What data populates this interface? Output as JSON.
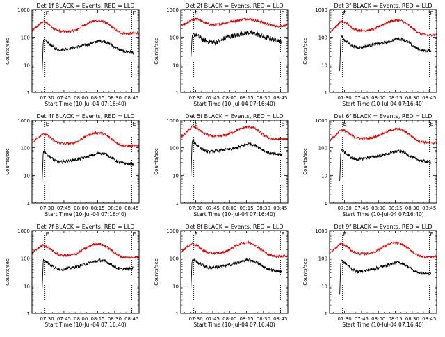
{
  "panel_title_suffix": "BLACK = Events, RED = LLD",
  "x_axis_title": "Start Time (10-Jul-04 07:16:40)",
  "y_axis_title": "Counts/sec",
  "x_tick_labels": [
    "07:30",
    "07:45",
    "08:00",
    "08:15",
    "08:30",
    "08:45"
  ],
  "y_tick_labels": [
    "1",
    "10",
    "100",
    "1000"
  ],
  "colors": {
    "events": "#000000",
    "lld": "#e00000",
    "axes": "#000000"
  },
  "chart_data": [
    {
      "type": "line",
      "detector": "1f",
      "title": "Det 1f BLACK = Events, RED = LLD",
      "xlabel": "Start Time (10-Jul-04 07:16:40)",
      "ylabel": "Counts/sec",
      "x_scale": "time (minutes after 07:16:40)",
      "xlim": [
        0,
        95
      ],
      "y_scale": "log",
      "ylim": [
        1,
        1000
      ],
      "markers": [
        {
          "label": "E",
          "x": 11.5
        },
        {
          "label": "E",
          "x": 88.5
        }
      ],
      "series": [
        {
          "color": "#e00000",
          "x": [
            0,
            5,
            10,
            15,
            20,
            25,
            30,
            35,
            40,
            45,
            50,
            55,
            60,
            65,
            70,
            75,
            80,
            85,
            90,
            95
          ],
          "y": [
            170,
            260,
            380,
            300,
            200,
            165,
            160,
            165,
            190,
            260,
            330,
            390,
            400,
            350,
            250,
            175,
            140,
            135,
            140,
            145
          ]
        },
        {
          "color": "#000000",
          "x": [
            9,
            10,
            11,
            13,
            15,
            20,
            25,
            30,
            35,
            40,
            45,
            50,
            55,
            60,
            65,
            70,
            75,
            80,
            85,
            90
          ],
          "y": [
            5,
            70,
            75,
            70,
            60,
            40,
            35,
            38,
            40,
            45,
            50,
            55,
            65,
            75,
            70,
            55,
            40,
            32,
            30,
            28
          ]
        }
      ]
    },
    {
      "type": "line",
      "detector": "2f",
      "title": "Det 2f BLACK = Events, RED = LLD",
      "xlabel": "Start Time (10-Jul-04 07:16:40)",
      "ylabel": "Counts/sec",
      "x_scale": "time (minutes after 07:16:40)",
      "xlim": [
        0,
        95
      ],
      "y_scale": "log",
      "ylim": [
        1,
        1000
      ],
      "markers": [
        {
          "label": "E",
          "x": 11.5
        },
        {
          "label": "E",
          "x": 88.5
        }
      ],
      "series": [
        {
          "color": "#e00000",
          "x": [
            0,
            5,
            10,
            15,
            20,
            25,
            30,
            35,
            40,
            45,
            50,
            55,
            60,
            65,
            70,
            75,
            80,
            85,
            90,
            95
          ],
          "y": [
            260,
            320,
            420,
            480,
            350,
            300,
            280,
            300,
            340,
            380,
            400,
            450,
            470,
            420,
            380,
            320,
            280,
            250,
            260,
            280
          ]
        },
        {
          "color": "#000000",
          "x": [
            9,
            10,
            11,
            13,
            15,
            20,
            25,
            30,
            35,
            40,
            45,
            50,
            55,
            60,
            65,
            70,
            75,
            80,
            85,
            90
          ],
          "y": [
            18,
            90,
            120,
            130,
            110,
            80,
            70,
            65,
            75,
            100,
            110,
            120,
            140,
            150,
            140,
            120,
            100,
            90,
            80,
            70
          ]
        }
      ]
    },
    {
      "type": "line",
      "detector": "3f",
      "title": "Det 3f BLACK = Events, RED = LLD",
      "xlabel": "Start Time (10-Jul-04 07:16:40)",
      "ylabel": "Counts/sec",
      "x_scale": "time (minutes after 07:16:40)",
      "xlim": [
        0,
        95
      ],
      "y_scale": "log",
      "ylim": [
        1,
        1000
      ],
      "markers": [
        {
          "label": "E",
          "x": 11.5
        },
        {
          "label": "E",
          "x": 88.5
        }
      ],
      "series": [
        {
          "color": "#e00000",
          "x": [
            0,
            5,
            10,
            15,
            20,
            25,
            30,
            35,
            40,
            45,
            50,
            55,
            60,
            65,
            70,
            75,
            80,
            85,
            90,
            95
          ],
          "y": [
            150,
            230,
            380,
            330,
            220,
            180,
            175,
            180,
            200,
            260,
            330,
            390,
            420,
            380,
            280,
            190,
            140,
            120,
            120,
            125
          ]
        },
        {
          "color": "#000000",
          "x": [
            9,
            10,
            11,
            13,
            15,
            20,
            25,
            30,
            35,
            40,
            45,
            50,
            55,
            60,
            65,
            70,
            75,
            80,
            85,
            90
          ],
          "y": [
            6,
            100,
            110,
            80,
            70,
            50,
            42,
            45,
            50,
            55,
            60,
            65,
            75,
            90,
            85,
            65,
            45,
            35,
            32,
            33
          ]
        }
      ]
    },
    {
      "type": "line",
      "detector": "4f",
      "title": "Det 4f BLACK = Events, RED = LLD",
      "xlabel": "Start Time (10-Jul-04 07:16:40)",
      "ylabel": "Counts/sec",
      "x_scale": "time (minutes after 07:16:40)",
      "xlim": [
        0,
        95
      ],
      "y_scale": "log",
      "ylim": [
        1,
        1000
      ],
      "markers": [
        {
          "label": "E",
          "x": 11.5
        },
        {
          "label": "E",
          "x": 88.5
        }
      ],
      "series": [
        {
          "color": "#e00000",
          "x": [
            0,
            5,
            10,
            15,
            20,
            25,
            30,
            35,
            40,
            45,
            50,
            55,
            60,
            65,
            70,
            75,
            80,
            85,
            90,
            95
          ],
          "y": [
            150,
            230,
            330,
            260,
            175,
            145,
            140,
            145,
            165,
            220,
            290,
            340,
            350,
            300,
            220,
            155,
            120,
            115,
            118,
            120
          ]
        },
        {
          "color": "#000000",
          "x": [
            9,
            10,
            11,
            13,
            15,
            20,
            25,
            30,
            35,
            40,
            45,
            50,
            55,
            60,
            65,
            70,
            75,
            80,
            85,
            90
          ],
          "y": [
            6,
            70,
            75,
            60,
            50,
            35,
            30,
            32,
            35,
            38,
            42,
            48,
            55,
            65,
            60,
            45,
            33,
            28,
            26,
            25
          ]
        }
      ]
    },
    {
      "type": "line",
      "detector": "5f",
      "title": "Det 5f BLACK = Events, RED = LLD",
      "xlabel": "Start Time (10-Jul-04 07:16:40)",
      "ylabel": "Counts/sec",
      "x_scale": "time (minutes after 07:16:40)",
      "xlim": [
        0,
        95
      ],
      "y_scale": "log",
      "ylim": [
        1,
        1000
      ],
      "markers": [
        {
          "label": "E",
          "x": 11.5
        },
        {
          "label": "E",
          "x": 88.5
        }
      ],
      "series": [
        {
          "color": "#e00000",
          "x": [
            0,
            5,
            10,
            15,
            20,
            25,
            30,
            35,
            40,
            45,
            50,
            55,
            60,
            65,
            70,
            75,
            80,
            85,
            90,
            95
          ],
          "y": [
            230,
            350,
            600,
            500,
            350,
            280,
            260,
            265,
            290,
            350,
            430,
            520,
            580,
            520,
            380,
            260,
            210,
            205,
            205,
            205
          ]
        },
        {
          "color": "#000000",
          "x": [
            9,
            10,
            11,
            13,
            15,
            20,
            25,
            30,
            35,
            40,
            45,
            50,
            55,
            60,
            65,
            70,
            75,
            80,
            85,
            90
          ],
          "y": [
            9,
            150,
            170,
            140,
            120,
            85,
            70,
            75,
            80,
            85,
            90,
            100,
            120,
            140,
            130,
            100,
            75,
            62,
            58,
            55
          ]
        }
      ]
    },
    {
      "type": "line",
      "detector": "6f",
      "title": "Det 6f BLACK = Events, RED = LLD",
      "xlabel": "Start Time (10-Jul-04 07:16:40)",
      "ylabel": "Counts/sec",
      "x_scale": "time (minutes after 07:16:40)",
      "xlim": [
        0,
        95
      ],
      "y_scale": "log",
      "ylim": [
        1,
        1000
      ],
      "markers": [
        {
          "label": "E",
          "x": 11.5
        },
        {
          "label": "E",
          "x": 88.5
        }
      ],
      "series": [
        {
          "color": "#e00000",
          "x": [
            0,
            5,
            10,
            15,
            20,
            25,
            30,
            35,
            40,
            45,
            50,
            55,
            60,
            65,
            70,
            75,
            80,
            85,
            90,
            95
          ],
          "y": [
            180,
            280,
            450,
            390,
            270,
            225,
            215,
            220,
            245,
            300,
            370,
            440,
            480,
            430,
            320,
            220,
            170,
            155,
            150,
            150
          ]
        },
        {
          "color": "#000000",
          "x": [
            9,
            10,
            11,
            13,
            15,
            20,
            25,
            30,
            35,
            40,
            45,
            50,
            55,
            60,
            65,
            70,
            75,
            80,
            85,
            90
          ],
          "y": [
            6,
            75,
            85,
            70,
            60,
            42,
            38,
            40,
            45,
            48,
            52,
            58,
            65,
            75,
            70,
            55,
            42,
            35,
            32,
            30
          ]
        }
      ]
    },
    {
      "type": "line",
      "detector": "7f",
      "title": "Det 7f BLACK = Events, RED = LLD",
      "xlabel": "Start Time (10-Jul-04 07:16:40)",
      "ylabel": "Counts/sec",
      "x_scale": "time (minutes after 07:16:40)",
      "xlim": [
        0,
        95
      ],
      "y_scale": "log",
      "ylim": [
        1,
        1000
      ],
      "markers": [
        {
          "label": "E",
          "x": 11.5
        },
        {
          "label": "E",
          "x": 88.5
        }
      ],
      "series": [
        {
          "color": "#e00000",
          "x": [
            0,
            5,
            10,
            15,
            20,
            25,
            30,
            35,
            40,
            45,
            50,
            55,
            60,
            65,
            70,
            75,
            80,
            85,
            90,
            95
          ],
          "y": [
            150,
            220,
            300,
            240,
            160,
            130,
            125,
            130,
            150,
            200,
            260,
            320,
            330,
            280,
            200,
            140,
            110,
            105,
            108,
            110
          ]
        },
        {
          "color": "#000000",
          "x": [
            9,
            10,
            11,
            13,
            15,
            20,
            25,
            30,
            35,
            40,
            45,
            50,
            55,
            60,
            65,
            70,
            75,
            80,
            85,
            90
          ],
          "y": [
            7,
            85,
            90,
            75,
            65,
            45,
            40,
            42,
            45,
            50,
            58,
            65,
            75,
            85,
            78,
            60,
            45,
            40,
            42,
            45
          ]
        }
      ]
    },
    {
      "type": "line",
      "detector": "8f",
      "title": "Det 8f BLACK = Events, RED = LLD",
      "xlabel": "Start Time (10-Jul-04 07:16:40)",
      "ylabel": "Counts/sec",
      "x_scale": "time (minutes after 07:16:40)",
      "xlim": [
        0,
        95
      ],
      "y_scale": "log",
      "ylim": [
        1,
        1000
      ],
      "markers": [
        {
          "label": "E",
          "x": 11.5
        },
        {
          "label": "E",
          "x": 88.5
        }
      ],
      "series": [
        {
          "color": "#e00000",
          "x": [
            0,
            5,
            10,
            15,
            20,
            25,
            30,
            35,
            40,
            45,
            50,
            55,
            60,
            65,
            70,
            75,
            80,
            85,
            90,
            95
          ],
          "y": [
            170,
            250,
            350,
            280,
            190,
            155,
            150,
            155,
            175,
            230,
            300,
            360,
            370,
            320,
            230,
            160,
            125,
            118,
            120,
            122
          ]
        },
        {
          "color": "#000000",
          "x": [
            9,
            10,
            11,
            13,
            15,
            20,
            25,
            30,
            35,
            40,
            45,
            50,
            55,
            60,
            65,
            70,
            75,
            80,
            85,
            90
          ],
          "y": [
            8,
            85,
            90,
            80,
            70,
            55,
            45,
            48,
            50,
            55,
            60,
            68,
            78,
            88,
            80,
            60,
            45,
            38,
            35,
            33
          ]
        }
      ]
    },
    {
      "type": "line",
      "detector": "9f",
      "title": "Det 9f BLACK = Events, RED = LLD",
      "xlabel": "Start Time (10-Jul-04 07:16:40)",
      "ylabel": "Counts/sec",
      "x_scale": "time (minutes after 07:16:40)",
      "xlim": [
        0,
        95
      ],
      "y_scale": "log",
      "ylim": [
        1,
        1000
      ],
      "markers": [
        {
          "label": "E",
          "x": 11.5
        },
        {
          "label": "E",
          "x": 88.5
        }
      ],
      "series": [
        {
          "color": "#e00000",
          "x": [
            0,
            5,
            10,
            15,
            20,
            25,
            30,
            35,
            40,
            45,
            50,
            55,
            60,
            65,
            70,
            75,
            80,
            85,
            90,
            95
          ],
          "y": [
            160,
            230,
            340,
            270,
            185,
            150,
            145,
            150,
            170,
            225,
            290,
            350,
            360,
            310,
            225,
            155,
            120,
            112,
            112,
            115
          ]
        },
        {
          "color": "#000000",
          "x": [
            9,
            10,
            11,
            13,
            15,
            20,
            25,
            30,
            35,
            40,
            45,
            50,
            55,
            60,
            65,
            70,
            75,
            80,
            85,
            90
          ],
          "y": [
            5,
            80,
            85,
            70,
            60,
            40,
            32,
            35,
            38,
            42,
            48,
            55,
            62,
            72,
            65,
            48,
            35,
            30,
            28,
            27
          ]
        }
      ]
    }
  ]
}
